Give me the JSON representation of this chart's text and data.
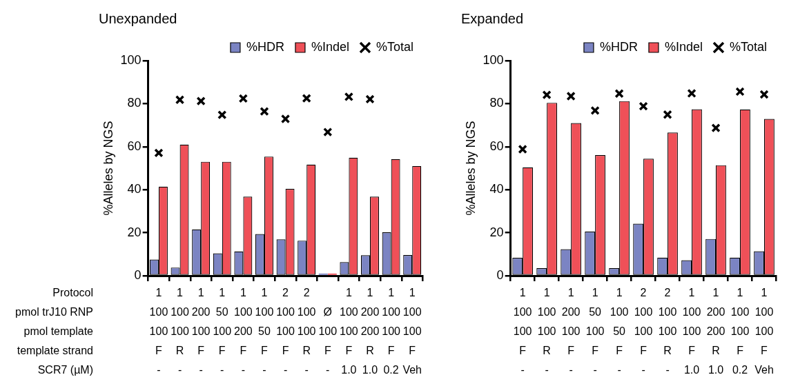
{
  "chart_data": [
    {
      "type": "bar",
      "title": "Unexpanded",
      "ylabel": "%Alleles by NGS",
      "ylim": [
        0,
        100
      ],
      "yticks": [
        0,
        20,
        40,
        60,
        80,
        100
      ],
      "grid": false,
      "legend": "top right",
      "marker": "cross",
      "categories": [
        "1\n100\n100\nF\n-",
        "1\n100\n100\nR\n-",
        "1\n200\n100\nF\n-",
        "1\n50\n100\nF\n-",
        "1\n100\n200\nF\n-",
        "1\n100\n50\nF\n-",
        "2\n100\n100\nF\n-",
        "2\n100\n100\nR\n-",
        "\nØ\n100\nF\n-",
        "1\n100\n100\nF\n1.0",
        "1\n200\n200\nR\n1.0",
        "1\n100\n100\nF\n0.2",
        "1\n100\n100\nF\nVeh"
      ],
      "annotations": [
        "Protocol",
        "pmol trJ10 RNP",
        "pmol template",
        "template strand",
        "SCR7 (µM)"
      ],
      "series": [
        {
          "name": "%HDR",
          "color": "#7b84c3",
          "values": [
            7.5,
            3.8,
            21.5,
            10.4,
            11.3,
            19.4,
            16.9,
            16.3,
            1,
            6.3,
            9.5,
            20.2,
            9.6
          ]
        },
        {
          "name": "%Indel",
          "color": "#ef5058",
          "values": [
            41.4,
            61,
            53,
            53,
            36.8,
            55.4,
            40.4,
            51.7,
            1,
            54.9,
            36.8,
            54.2,
            51
          ]
        },
        {
          "name": "%Total",
          "type": "scatter",
          "color": "#000000",
          "values": [
            57.1,
            81.8,
            81.2,
            74.8,
            82.4,
            76.4,
            72.9,
            82.5,
            66.8,
            83.2,
            82.1,
            null,
            null
          ]
        }
      ]
    },
    {
      "type": "bar",
      "title": "Expanded",
      "ylabel": "%Alleles by NGS",
      "ylim": [
        0,
        100
      ],
      "yticks": [
        0,
        20,
        40,
        60,
        80,
        100
      ],
      "grid": false,
      "legend": "top right",
      "marker": "cross",
      "categories": [
        "1\n100\n100\nF\n-",
        "1\n100\n100\nR\n-",
        "1\n200\n100\nF\n-",
        "1\n50\n100\nF\n-",
        "1\n100\n50\nF\n-",
        "2\n100\n100\nF\n-",
        "2\n100\n100\nR\n-",
        "1\n100\n100\nF\n1.0",
        "1\n200\n200\nR\n1.0",
        "1\n100\n100\nF\n0.2",
        "1\n100\n100\nF\nVeh"
      ],
      "series": [
        {
          "name": "%HDR",
          "color": "#7b84c3",
          "values": [
            8.3,
            3.5,
            12.3,
            20.5,
            3.5,
            24.2,
            8.4,
            7.2,
            17.1,
            8.4,
            11.4
          ]
        },
        {
          "name": "%Indel",
          "color": "#ef5058",
          "values": [
            50.4,
            80.4,
            71,
            56.1,
            81.2,
            54.4,
            66.6,
            77.4,
            51.4,
            77.3,
            72.9
          ]
        },
        {
          "name": "%Total",
          "type": "scatter",
          "color": "#000000",
          "values": [
            58.8,
            84.1,
            83.5,
            76.8,
            84.7,
            78.8,
            74.9,
            84.8,
            68.7,
            85.6,
            84.3
          ]
        }
      ]
    }
  ]
}
